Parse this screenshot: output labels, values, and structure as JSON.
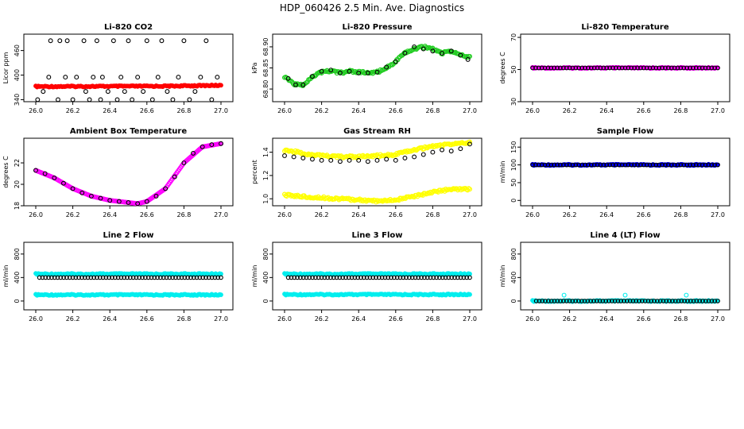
{
  "title": "HDP_060426  2.5 Min. Ave. Diagnostics",
  "chart_data": [
    {
      "type": "scatter",
      "title": "Li-820 CO2",
      "ylabel": "Licor ppm",
      "xlim": [
        26.0,
        27.0
      ],
      "ylim": [
        335,
        500
      ],
      "xticks": [
        "26.0",
        "26.2",
        "26.4",
        "26.6",
        "26.8",
        "27.0"
      ],
      "yticks": [
        "340",
        "400",
        "460"
      ],
      "series": [
        {
          "color": "#ff0000",
          "kind": "band",
          "x": [
            26.0,
            26.7,
            27.0
          ],
          "y": [
            372,
            373,
            375
          ]
        },
        {
          "color": "#000000",
          "kind": "open",
          "x": [
            26.01,
            26.04,
            26.07,
            26.08,
            26.12,
            26.13,
            26.16,
            26.17,
            26.2,
            26.22,
            26.26,
            26.27,
            26.29,
            26.31,
            26.33,
            26.35,
            26.36,
            26.39,
            26.42,
            26.44,
            26.46,
            26.48,
            26.5,
            26.52,
            26.55,
            26.58,
            26.6,
            26.63,
            26.66,
            26.68,
            26.71,
            26.74,
            26.77,
            26.8,
            26.83,
            26.86,
            26.89,
            26.92,
            26.95,
            26.98
          ],
          "y": [
            340,
            360,
            395,
            484,
            340,
            484,
            395,
            484,
            340,
            395,
            484,
            360,
            340,
            395,
            484,
            340,
            395,
            360,
            484,
            340,
            395,
            360,
            484,
            340,
            395,
            360,
            484,
            340,
            395,
            484,
            360,
            340,
            395,
            484,
            340,
            360,
            395,
            484,
            340,
            395
          ]
        }
      ]
    },
    {
      "type": "scatter",
      "title": "Li-820 Pressure",
      "ylabel": "kPa",
      "xlim": [
        26.0,
        27.0
      ],
      "ylim": [
        68.77,
        68.93
      ],
      "xticks": [
        "26.0",
        "26.2",
        "26.4",
        "26.6",
        "26.8",
        "27.0"
      ],
      "yticks": [
        "68.80",
        "68.85",
        "68.90"
      ],
      "series": [
        {
          "color": "#22cc22",
          "kind": "cloud",
          "x": [
            26.0,
            26.03,
            26.06,
            26.1,
            26.15,
            26.2,
            26.25,
            26.3,
            26.35,
            26.4,
            26.45,
            26.5,
            26.55,
            26.6,
            26.65,
            26.7,
            26.75,
            26.8,
            26.85,
            26.9,
            26.95,
            27.0
          ],
          "y": [
            68.83,
            68.82,
            68.81,
            68.81,
            68.83,
            68.84,
            68.843,
            68.838,
            68.842,
            68.84,
            68.838,
            68.84,
            68.85,
            68.865,
            68.885,
            68.895,
            68.9,
            68.895,
            68.885,
            68.89,
            68.88,
            68.875
          ]
        },
        {
          "color": "#000000",
          "kind": "open",
          "x": [
            26.02,
            26.06,
            26.1,
            26.15,
            26.2,
            26.25,
            26.3,
            26.35,
            26.4,
            26.45,
            26.5,
            26.55,
            26.6,
            26.65,
            26.7,
            26.75,
            26.8,
            26.85,
            26.9,
            26.95,
            26.99
          ],
          "y": [
            68.825,
            68.81,
            68.81,
            68.83,
            68.842,
            68.845,
            68.838,
            68.842,
            68.838,
            68.838,
            68.84,
            68.852,
            68.865,
            68.885,
            68.9,
            68.895,
            68.89,
            68.885,
            68.89,
            68.88,
            68.87
          ]
        }
      ]
    },
    {
      "type": "scatter",
      "title": "Li-820 Temperature",
      "ylabel": "degrees C",
      "xlim": [
        26.0,
        27.0
      ],
      "ylim": [
        30,
        72
      ],
      "xticks": [
        "26.0",
        "26.2",
        "26.4",
        "26.6",
        "26.8",
        "27.0"
      ],
      "yticks": [
        "30",
        "50",
        "70"
      ],
      "series": [
        {
          "color": "#ff00ff",
          "kind": "band",
          "x": [
            26.0,
            27.0
          ],
          "y": [
            51,
            51
          ]
        },
        {
          "color": "#000000",
          "kind": "open-dense",
          "x": [
            26.0,
            27.0
          ],
          "y": [
            51,
            51
          ]
        }
      ]
    },
    {
      "type": "scatter",
      "title": "Ambient Box Temperature",
      "ylabel": "degrees C",
      "xlim": [
        26.0,
        27.0
      ],
      "ylim": [
        18,
        24.3
      ],
      "xticks": [
        "26.0",
        "26.2",
        "26.4",
        "26.6",
        "26.8",
        "27.0"
      ],
      "yticks": [
        "18",
        "20",
        "22"
      ],
      "series": [
        {
          "color": "#ff00ff",
          "kind": "curve",
          "x": [
            26.0,
            26.1,
            26.2,
            26.3,
            26.4,
            26.5,
            26.55,
            26.6,
            26.7,
            26.8,
            26.9,
            27.0
          ],
          "y": [
            21.3,
            20.6,
            19.6,
            18.9,
            18.5,
            18.3,
            18.2,
            18.4,
            19.6,
            22.0,
            23.5,
            23.8
          ]
        },
        {
          "color": "#000000",
          "kind": "open",
          "x": [
            26.0,
            26.05,
            26.1,
            26.15,
            26.2,
            26.25,
            26.3,
            26.35,
            26.4,
            26.45,
            26.5,
            26.55,
            26.6,
            26.65,
            26.7,
            26.75,
            26.8,
            26.85,
            26.9,
            26.95,
            27.0
          ],
          "y": [
            21.3,
            21.0,
            20.6,
            20.1,
            19.6,
            19.2,
            18.9,
            18.7,
            18.5,
            18.4,
            18.3,
            18.2,
            18.4,
            18.9,
            19.6,
            20.7,
            22.0,
            22.9,
            23.5,
            23.7,
            23.8
          ]
        }
      ]
    },
    {
      "type": "scatter",
      "title": "Gas Stream RH",
      "ylabel": "percent",
      "xlim": [
        26.0,
        27.0
      ],
      "ylim": [
        0.94,
        1.52
      ],
      "xticks": [
        "26.0",
        "26.2",
        "26.4",
        "26.6",
        "26.8",
        "27.0"
      ],
      "yticks": [
        "1.0",
        "1.2",
        "1.4"
      ],
      "series": [
        {
          "color": "#ffff00",
          "kind": "cloud",
          "x": [
            26.0,
            26.1,
            26.2,
            26.3,
            26.4,
            26.5,
            26.6,
            26.7,
            26.8,
            26.9,
            27.0
          ],
          "y": [
            1.42,
            1.39,
            1.37,
            1.36,
            1.36,
            1.37,
            1.38,
            1.42,
            1.45,
            1.47,
            1.48
          ]
        },
        {
          "color": "#ffff00",
          "kind": "cloud",
          "x": [
            26.0,
            26.1,
            26.2,
            26.3,
            26.4,
            26.5,
            26.6,
            26.7,
            26.8,
            26.9,
            27.0
          ],
          "y": [
            1.03,
            1.02,
            1.01,
            1.0,
            0.99,
            0.98,
            0.99,
            1.02,
            1.06,
            1.08,
            1.08
          ]
        },
        {
          "color": "#000000",
          "kind": "open",
          "x": [
            26.0,
            26.05,
            26.1,
            26.15,
            26.2,
            26.25,
            26.3,
            26.35,
            26.4,
            26.45,
            26.5,
            26.55,
            26.6,
            26.65,
            26.7,
            26.75,
            26.8,
            26.85,
            26.9,
            26.95,
            27.0
          ],
          "y": [
            1.37,
            1.36,
            1.35,
            1.34,
            1.33,
            1.33,
            1.32,
            1.33,
            1.33,
            1.32,
            1.33,
            1.34,
            1.33,
            1.35,
            1.36,
            1.38,
            1.4,
            1.42,
            1.41,
            1.43,
            1.47
          ]
        }
      ]
    },
    {
      "type": "scatter",
      "title": "Sample Flow",
      "ylabel": "ml/min",
      "xlim": [
        26.0,
        27.0
      ],
      "ylim": [
        -15,
        175
      ],
      "xticks": [
        "26.0",
        "26.2",
        "26.4",
        "26.6",
        "26.8",
        "27.0"
      ],
      "yticks": [
        "0",
        "50",
        "100",
        "150"
      ],
      "series": [
        {
          "color": "#0000ff",
          "kind": "band",
          "x": [
            26.0,
            27.0
          ],
          "y": [
            100,
            100
          ]
        },
        {
          "color": "#000000",
          "kind": "open-dense",
          "x": [
            26.0,
            27.0
          ],
          "y": [
            100,
            100
          ]
        }
      ]
    },
    {
      "type": "scatter",
      "title": "Line 2 Flow",
      "ylabel": "ml/min",
      "xlim": [
        26.0,
        27.0
      ],
      "ylim": [
        -150,
        1000
      ],
      "xticks": [
        "26.0",
        "26.2",
        "26.4",
        "26.6",
        "26.8",
        "27.0"
      ],
      "yticks": [
        "0",
        "400",
        "800"
      ],
      "series": [
        {
          "color": "#00eeee",
          "kind": "band",
          "x": [
            26.0,
            27.0
          ],
          "y": [
            460,
            460
          ]
        },
        {
          "color": "#00eeee",
          "kind": "band",
          "x": [
            26.0,
            27.0
          ],
          "y": [
            105,
            105
          ]
        },
        {
          "color": "#000000",
          "kind": "open-dense",
          "x": [
            26.02,
            27.0
          ],
          "y": [
            400,
            400
          ]
        }
      ]
    },
    {
      "type": "scatter",
      "title": "Line 3 Flow",
      "ylabel": "ml/min",
      "xlim": [
        26.0,
        27.0
      ],
      "ylim": [
        -150,
        1000
      ],
      "xticks": [
        "26.0",
        "26.2",
        "26.4",
        "26.6",
        "26.8",
        "27.0"
      ],
      "yticks": [
        "0",
        "400",
        "800"
      ],
      "series": [
        {
          "color": "#00eeee",
          "kind": "band",
          "x": [
            26.0,
            27.0
          ],
          "y": [
            460,
            460
          ]
        },
        {
          "color": "#00eeee",
          "kind": "band",
          "x": [
            26.0,
            27.0
          ],
          "y": [
            110,
            110
          ]
        },
        {
          "color": "#000000",
          "kind": "open-dense",
          "x": [
            26.02,
            27.0
          ],
          "y": [
            400,
            400
          ]
        }
      ]
    },
    {
      "type": "scatter",
      "title": "Line 4 (LT) Flow",
      "ylabel": "ml/min",
      "xlim": [
        26.0,
        27.0
      ],
      "ylim": [
        -150,
        1000
      ],
      "xticks": [
        "26.0",
        "26.2",
        "26.4",
        "26.6",
        "26.8",
        "27.0"
      ],
      "yticks": [
        "0",
        "400",
        "800"
      ],
      "series": [
        {
          "color": "#00eeee",
          "kind": "band",
          "x": [
            26.0,
            27.0
          ],
          "y": [
            0,
            0
          ]
        },
        {
          "color": "#00eeee",
          "kind": "open",
          "x": [
            26.17,
            26.5,
            26.83
          ],
          "y": [
            100,
            100,
            100
          ]
        },
        {
          "color": "#000000",
          "kind": "open-dense",
          "x": [
            26.02,
            27.0
          ],
          "y": [
            0,
            0
          ]
        }
      ]
    }
  ]
}
